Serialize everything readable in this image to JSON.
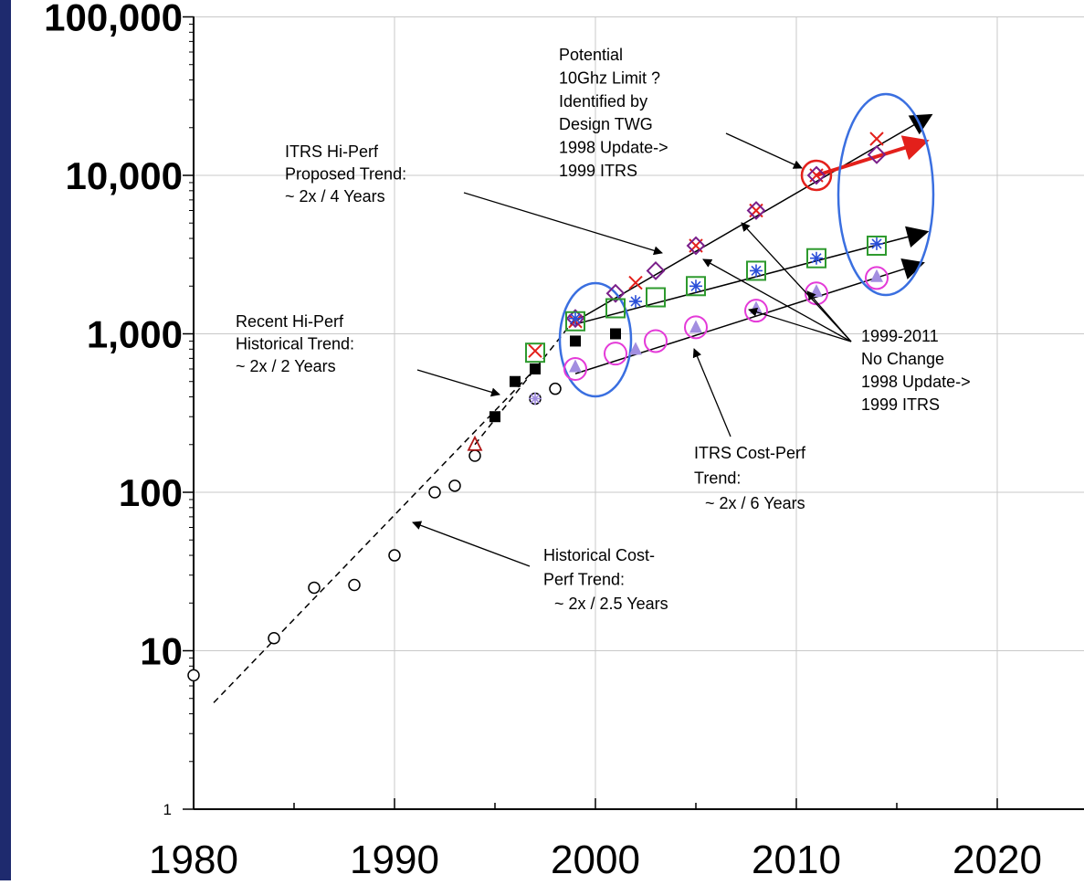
{
  "colors": {
    "sidebar": "#1e2a6e",
    "blue_ellipse": "#3a6fe0",
    "red": "#e3201b",
    "magenta": "#e43ad8",
    "green": "#2e9a2e",
    "purple": "#7a1f8a",
    "lilac": "#a28ee0",
    "star_blue": "#2a4fd8"
  },
  "chart_data": {
    "type": "scatter",
    "title": "",
    "xlabel": "",
    "ylabel": "",
    "x_ticks": [
      "1980",
      "1990",
      "2000",
      "2010",
      "2020"
    ],
    "y_ticks": [
      "1",
      "10",
      "100",
      "1,000",
      "10,000",
      "100,000"
    ],
    "xlim": [
      1980,
      2024
    ],
    "ylim": [
      1,
      100000
    ],
    "y_scale": "log",
    "grid": true,
    "series": [
      {
        "marker": "open-circle",
        "color": "#000000",
        "points": [
          [
            1980,
            7
          ],
          [
            1984,
            12
          ],
          [
            1986,
            25
          ],
          [
            1988,
            26
          ],
          [
            1990,
            40
          ],
          [
            1992,
            100
          ],
          [
            1993,
            110
          ],
          [
            1994,
            170
          ],
          [
            1997,
            390
          ],
          [
            1998,
            450
          ]
        ]
      },
      {
        "marker": "filled-square",
        "color": "#000000",
        "points": [
          [
            1995,
            300
          ],
          [
            1996,
            500
          ],
          [
            1997,
            600
          ],
          [
            1999,
            900
          ],
          [
            2001,
            1000
          ]
        ]
      },
      {
        "marker": "open-triangle",
        "color": "#b01818",
        "points": [
          [
            1994,
            200
          ]
        ]
      },
      {
        "marker": "asterisk",
        "color": "#a28ee0",
        "points": [
          [
            1997,
            390
          ]
        ]
      },
      {
        "marker": "x",
        "color": "#e3201b",
        "points": [
          [
            1997,
            780
          ],
          [
            1999,
            1200
          ],
          [
            2002,
            2100
          ],
          [
            2005,
            3600
          ],
          [
            2008,
            6000
          ],
          [
            2011,
            10000
          ],
          [
            2014,
            17000
          ]
        ]
      },
      {
        "marker": "diamond",
        "color": "#7a1f8a",
        "points": [
          [
            1999,
            1250
          ],
          [
            2001,
            1800
          ],
          [
            2003,
            2500
          ],
          [
            2005,
            3600
          ],
          [
            2008,
            6000
          ],
          [
            2011,
            10000
          ],
          [
            2014,
            13500
          ]
        ]
      },
      {
        "marker": "open-square",
        "color": "#2e9a2e",
        "points": [
          [
            1997,
            760
          ],
          [
            1999,
            1200
          ],
          [
            2001,
            1450
          ],
          [
            2003,
            1700
          ],
          [
            2005,
            2000
          ],
          [
            2008,
            2500
          ],
          [
            2011,
            3000
          ],
          [
            2014,
            3600
          ]
        ]
      },
      {
        "marker": "asterisk",
        "color": "#2a4fd8",
        "points": [
          [
            1999,
            1250
          ],
          [
            2002,
            1600
          ],
          [
            2005,
            2000
          ],
          [
            2008,
            2500
          ],
          [
            2011,
            3000
          ],
          [
            2014,
            3700
          ]
        ]
      },
      {
        "marker": "open-circle",
        "color": "#e43ad8",
        "points": [
          [
            1999,
            600
          ],
          [
            2001,
            750
          ],
          [
            2003,
            900
          ],
          [
            2005,
            1100
          ],
          [
            2008,
            1400
          ],
          [
            2011,
            1800
          ],
          [
            2014,
            2250
          ]
        ]
      },
      {
        "marker": "filled-triangle",
        "color": "#a28ee0",
        "points": [
          [
            1999,
            620
          ],
          [
            2002,
            800
          ],
          [
            2005,
            1100
          ],
          [
            2008,
            1450
          ],
          [
            2011,
            1850
          ],
          [
            2014,
            2300
          ]
        ]
      }
    ],
    "trend_lines": [
      {
        "style": "dashed",
        "from": [
          1981,
          4.7
        ],
        "to": [
          1997,
          600
        ]
      },
      {
        "style": "dashed",
        "from": [
          1994,
          200
        ],
        "to": [
          1999,
          1250
        ]
      },
      {
        "style": "solid-arrow",
        "from": [
          1999,
          1200
        ],
        "to": [
          2016.7,
          24000
        ]
      },
      {
        "style": "solid-arrow",
        "from": [
          1999,
          1150
        ],
        "to": [
          2016.5,
          4400
        ]
      },
      {
        "style": "solid-arrow",
        "from": [
          1999,
          560
        ],
        "to": [
          2016.3,
          2800
        ]
      },
      {
        "style": "red-arrow",
        "from": [
          2011,
          10000
        ],
        "to": [
          2016.5,
          16500
        ]
      }
    ],
    "annotations": [
      {
        "lines": [
          "Potential",
          "10Ghz Limit ?",
          "Identified by",
          "Design TWG",
          "1998 Update->",
          "1999 ITRS"
        ]
      },
      {
        "lines": [
          "ITRS Hi-Perf",
          "Proposed Trend:",
          "~ 2x / 4 Years"
        ]
      },
      {
        "lines": [
          "Recent Hi-Perf",
          "Historical Trend:",
          "~ 2x / 2 Years"
        ]
      },
      {
        "lines": [
          "1999-2011",
          "No Change",
          "1998 Update->",
          "1999 ITRS"
        ]
      },
      {
        "lines": [
          "ITRS Cost-Perf",
          "Trend:",
          "~ 2x / 6 Years"
        ]
      },
      {
        "lines": [
          "Historical Cost-",
          "Perf Trend:",
          "~ 2x / 2.5 Years"
        ]
      }
    ]
  }
}
